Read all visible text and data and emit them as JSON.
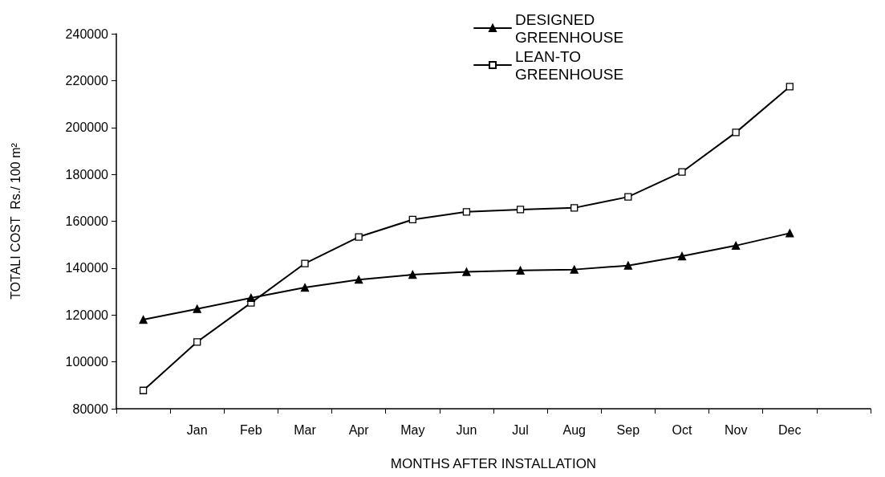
{
  "chart_data": {
    "type": "line",
    "xlabel": "MONTHS AFTER INSTALLATION",
    "ylabel": "TOTALI COST  Rs./ 100 m²",
    "categories": [
      null,
      "Jan",
      "Feb",
      "Mar",
      "Apr",
      "May",
      "Jun",
      "Jul",
      "Aug",
      "Sep",
      "Oct",
      "Nov",
      "Dec",
      null
    ],
    "series": [
      {
        "name": "DESIGNED GREENHOUSE",
        "color": "#000000",
        "marker": "triangle",
        "values": [
          118000,
          122600,
          127300,
          131700,
          135100,
          137200,
          138400,
          139000,
          139400,
          141100,
          145100,
          149600,
          154900,
          null
        ]
      },
      {
        "name": "LEAN-TO GREENHOUSE",
        "color": "#000000",
        "marker": "square",
        "values": [
          87800,
          108500,
          125200,
          142000,
          153300,
          160700,
          164000,
          165000,
          165700,
          170400,
          181000,
          197900,
          217400,
          null
        ]
      }
    ],
    "ylim": [
      80000,
      240000
    ],
    "yticks": [
      80000,
      100000,
      120000,
      140000,
      160000,
      180000,
      200000,
      220000,
      240000
    ],
    "grid": false,
    "legend": "top right",
    "line_style": "solid"
  }
}
